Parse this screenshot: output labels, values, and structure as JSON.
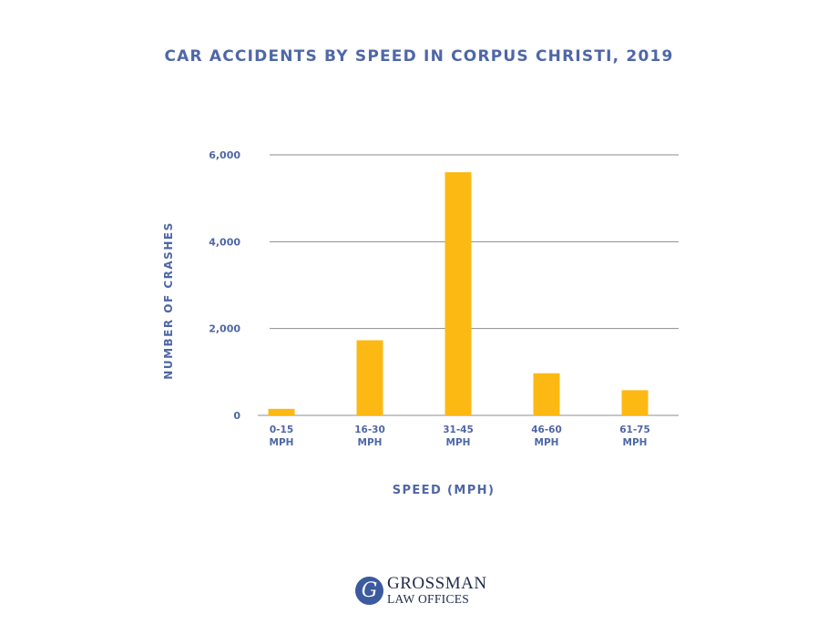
{
  "chart_data": {
    "type": "bar",
    "title": "CAR ACCIDENTS BY SPEED IN CORPUS CHRISTI, 2019",
    "xlabel": "SPEED (MPH)",
    "ylabel": "NUMBER OF CRASHES",
    "categories": [
      "0-15 MPH",
      "16-30 MPH",
      "31-45 MPH",
      "46-60 MPH",
      "61-75 MPH"
    ],
    "category_lines": [
      [
        "0-15",
        "MPH"
      ],
      [
        "16-30",
        "MPH"
      ],
      [
        "31-45",
        "MPH"
      ],
      [
        "46-60",
        "MPH"
      ],
      [
        "61-75",
        "MPH"
      ]
    ],
    "values": [
      150,
      1730,
      5600,
      970,
      580
    ],
    "ylim": [
      0,
      6000
    ],
    "yticks": [
      0,
      2000,
      4000,
      6000
    ],
    "ytick_labels": [
      "0",
      "2,000",
      "4,000",
      "6,000"
    ],
    "grid": true,
    "bar_color": "#fdb913",
    "text_color": "#4f67a6",
    "grid_color": "#8c8c8c"
  },
  "logo": {
    "monogram": "G",
    "line1": "GROSSMAN",
    "line2": "LAW OFFICES",
    "color": "#3c5a9f"
  }
}
